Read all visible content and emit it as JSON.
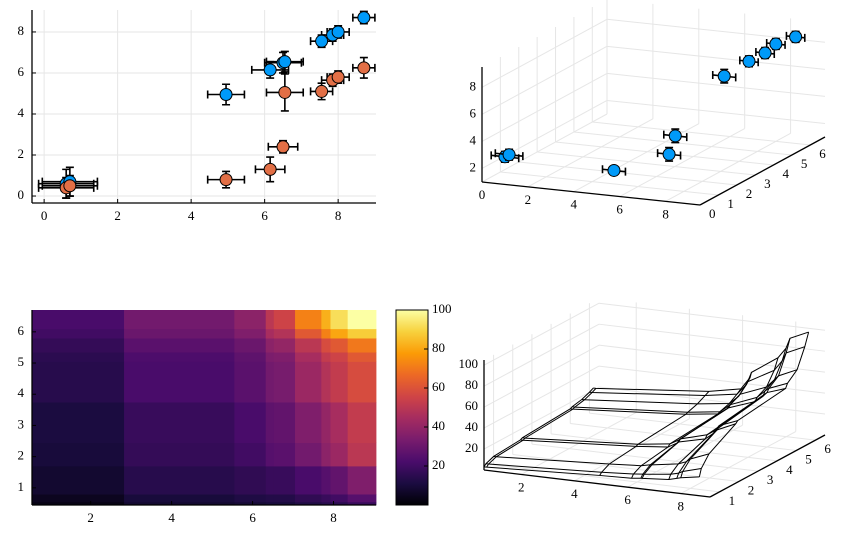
{
  "chart_data": [
    {
      "type": "scatter",
      "xlim": [
        -0.33,
        9.03
      ],
      "ylim": [
        -0.34,
        9.07
      ],
      "xticks": [
        0,
        2,
        4,
        6,
        8
      ],
      "yticks": [
        0,
        2,
        4,
        6,
        8
      ],
      "grid": true,
      "series": [
        {
          "color": "#009af9",
          "x": [
            0.6,
            0.7,
            4.95,
            6.15,
            6.5,
            6.55,
            7.55,
            7.85,
            8.0,
            8.7
          ],
          "y": [
            0.6,
            0.7,
            4.95,
            6.15,
            6.5,
            6.55,
            7.55,
            7.85,
            8.0,
            8.7
          ],
          "xerr": [
            0.75,
            0.75,
            0.5,
            0.5,
            0.5,
            0.5,
            0.3,
            0.3,
            0.3,
            0.3
          ],
          "yerr": [
            0.7,
            0.7,
            0.5,
            0.4,
            0.5,
            0.5,
            0.3,
            0.3,
            0.3,
            0.3
          ]
        },
        {
          "color": "#e26f46",
          "x": [
            0.6,
            0.7,
            4.95,
            6.15,
            6.5,
            6.55,
            7.55,
            7.85,
            8.0,
            8.7
          ],
          "y": [
            0.4,
            0.5,
            0.8,
            1.3,
            2.4,
            5.05,
            5.1,
            5.65,
            5.8,
            6.25
          ],
          "xerr": [
            0.75,
            0.75,
            0.5,
            0.4,
            0.4,
            0.5,
            0.3,
            0.3,
            0.3,
            0.3
          ],
          "yerr": [
            0.5,
            0.5,
            0.4,
            0.6,
            0.3,
            0.9,
            0.4,
            0.3,
            0.3,
            0.5
          ]
        }
      ]
    },
    {
      "type": "scatter3d",
      "xlim": [
        0,
        9.5
      ],
      "ylim": [
        0,
        6.8
      ],
      "zlim": [
        1,
        9.5
      ],
      "xticks": [
        0,
        2,
        4,
        6,
        8
      ],
      "yticks": [
        0,
        1,
        2,
        3,
        4,
        5,
        6
      ],
      "zticks": [
        2,
        4,
        6,
        8
      ],
      "grid": true,
      "series": [
        {
          "color": "#009af9",
          "x": [
            0.6,
            0.7,
            4.95,
            6.15,
            6.5,
            6.55,
            7.55,
            7.85,
            8.0,
            8.7
          ],
          "y": [
            0.5,
            0.6,
            1.0,
            2.5,
            2.4,
            5.0,
            5.1,
            5.6,
            6.0,
            6.2
          ],
          "z": [
            2.6,
            2.7,
            2.0,
            2.3,
            3.8,
            6.3,
            7.5,
            7.8,
            8.2,
            8.7
          ],
          "xerr": [
            0.6,
            0.6,
            0.5,
            0.5,
            0.5,
            0.5,
            0.4,
            0.4,
            0.4,
            0.4
          ],
          "zerr": [
            0.4,
            0.4,
            0.3,
            0.5,
            0.5,
            0.5,
            0.4,
            0.4,
            0.4,
            0.4
          ]
        }
      ]
    },
    {
      "type": "heatmap",
      "xlim": [
        0.55,
        9.05
      ],
      "ylim": [
        0.45,
        6.7
      ],
      "xticks": [
        2,
        4,
        6,
        8
      ],
      "yticks": [
        1,
        2,
        3,
        4,
        5,
        6
      ],
      "x": [
        0.6,
        0.7,
        4.95,
        6.15,
        6.5,
        6.55,
        7.55,
        7.85,
        8.0,
        8.7
      ],
      "y": [
        0.5,
        0.6,
        1.0,
        2.4,
        2.5,
        5.0,
        5.1,
        5.6,
        6.0,
        6.2
      ],
      "z": [
        [
          3,
          3,
          8,
          9,
          10,
          10,
          12,
          14,
          15,
          18
        ],
        [
          5,
          5,
          10,
          12,
          13,
          13,
          16,
          18,
          20,
          25
        ],
        [
          8,
          8,
          14,
          16,
          18,
          18,
          22,
          25,
          28,
          35
        ],
        [
          10,
          10,
          17,
          20,
          25,
          26,
          32,
          38,
          42,
          50
        ],
        [
          11,
          11,
          18,
          22,
          27,
          28,
          35,
          40,
          45,
          52
        ],
        [
          14,
          14,
          22,
          26,
          32,
          33,
          42,
          48,
          52,
          58
        ],
        [
          15,
          15,
          23,
          27,
          34,
          35,
          45,
          52,
          55,
          62
        ],
        [
          17,
          17,
          26,
          30,
          38,
          40,
          50,
          58,
          62,
          70
        ],
        [
          20,
          20,
          30,
          35,
          45,
          48,
          62,
          72,
          80,
          88
        ],
        [
          22,
          22,
          32,
          38,
          50,
          55,
          72,
          82,
          92,
          100
        ]
      ],
      "colormap": [
        "#000004",
        "#1b0c41",
        "#4a0c6b",
        "#781c6d",
        "#a52c60",
        "#cf4446",
        "#ed6925",
        "#fb9b06",
        "#f7d13d",
        "#fcffa4"
      ],
      "clim": [
        0,
        100
      ],
      "cticks": [
        20,
        40,
        60,
        80,
        100
      ]
    },
    {
      "type": "wireframe",
      "xlim": [
        0.6,
        9.1
      ],
      "ylim": [
        0.5,
        6.5
      ],
      "zlim": [
        0,
        105
      ],
      "xticks": [
        2,
        4,
        6,
        8
      ],
      "yticks": [
        1,
        2,
        3,
        4,
        5,
        6
      ],
      "zticks": [
        20,
        40,
        60,
        80,
        100
      ],
      "grid": true,
      "color": "#000000",
      "x": [
        0.6,
        0.7,
        4.95,
        6.15,
        6.5,
        6.55,
        7.55,
        7.85,
        8.0,
        8.7
      ],
      "y": [
        0.5,
        0.6,
        1.0,
        2.4,
        2.5,
        5.0,
        5.1,
        5.6,
        6.0,
        6.2
      ],
      "z": [
        [
          3,
          3,
          8,
          9,
          10,
          10,
          12,
          14,
          15,
          18
        ],
        [
          5,
          5,
          10,
          12,
          13,
          13,
          16,
          18,
          20,
          25
        ],
        [
          8,
          8,
          14,
          16,
          18,
          18,
          22,
          25,
          28,
          35
        ],
        [
          10,
          10,
          17,
          20,
          25,
          26,
          32,
          38,
          42,
          50
        ],
        [
          11,
          11,
          18,
          22,
          27,
          28,
          35,
          40,
          45,
          52
        ],
        [
          14,
          14,
          22,
          26,
          32,
          33,
          42,
          48,
          52,
          58
        ],
        [
          15,
          15,
          23,
          27,
          34,
          35,
          45,
          52,
          55,
          62
        ],
        [
          17,
          17,
          26,
          30,
          38,
          40,
          50,
          58,
          62,
          70
        ],
        [
          20,
          20,
          30,
          35,
          45,
          48,
          62,
          72,
          80,
          88
        ],
        [
          22,
          22,
          32,
          38,
          50,
          55,
          72,
          82,
          92,
          100
        ]
      ]
    }
  ]
}
